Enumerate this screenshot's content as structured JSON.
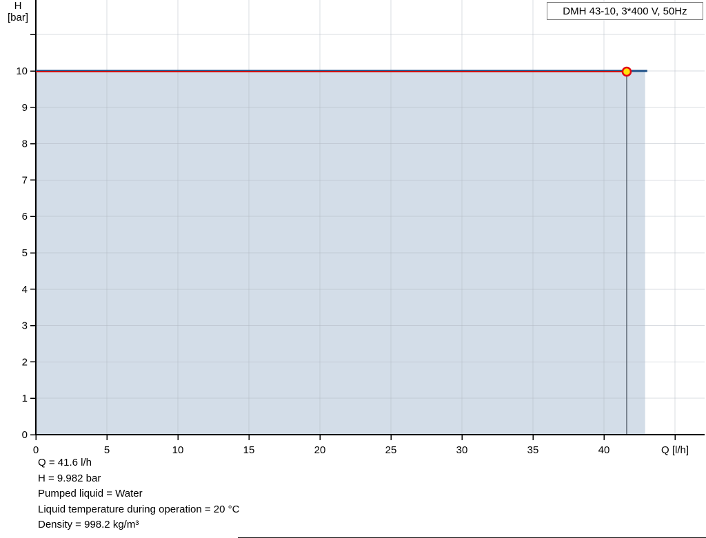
{
  "chart_data": {
    "type": "area",
    "title": "DMH 43-10, 3*400 V, 50Hz",
    "xlabel": "Q [l/h]",
    "ylabel": "H [bar]",
    "xlim": [
      0,
      47.2
    ],
    "ylim": [
      0,
      11.95
    ],
    "x_ticks": [
      0,
      5,
      10,
      15,
      20,
      25,
      30,
      35,
      40,
      45
    ],
    "x_tick_labels": [
      "0",
      "5",
      "10",
      "15",
      "20",
      "25",
      "30",
      "35",
      "40",
      "Q [l/h]"
    ],
    "y_ticks": [
      0,
      1,
      2,
      3,
      4,
      5,
      6,
      7,
      8,
      9,
      10
    ],
    "y_tick_marks": [
      0,
      1,
      2,
      3,
      4,
      5,
      6,
      7,
      8,
      9,
      10,
      11
    ],
    "x_gridlines": [
      5,
      10,
      15,
      20,
      25,
      30,
      35,
      40,
      45
    ],
    "y_gridlines": [
      1,
      2,
      3,
      4,
      5,
      6,
      7,
      8,
      9,
      10,
      11
    ],
    "grid": true,
    "legend_position": "top-right",
    "series": [
      {
        "name": "max-capacity-curve",
        "color": "#1c4f87",
        "width": 3,
        "points": [
          [
            0,
            10
          ],
          [
            43.05,
            10
          ]
        ]
      },
      {
        "name": "duty-range-curve",
        "color": "#cc0f0f",
        "width": 2,
        "points": [
          [
            0,
            9.982
          ],
          [
            41.6,
            9.982
          ]
        ]
      }
    ],
    "area": {
      "name": "operating-area",
      "color": "#d3dde8",
      "x_end": 42.9,
      "h_top": 10,
      "baseline": 0
    },
    "operating_point": {
      "q": 41.6,
      "h": 9.982,
      "marker_fill": "#ffe20a",
      "marker_stroke": "#e30613"
    },
    "colors": {
      "axis": "#000000",
      "grid": "#aeb4bf",
      "drop_line": "#4f5a66"
    }
  },
  "info_panel": {
    "lines": [
      "Q = 41.6 l/h",
      "H = 9.982 bar",
      "Pumped liquid = Water",
      "Liquid temperature during operation = 20 °C",
      "Density = 998.2 kg/m³"
    ]
  }
}
